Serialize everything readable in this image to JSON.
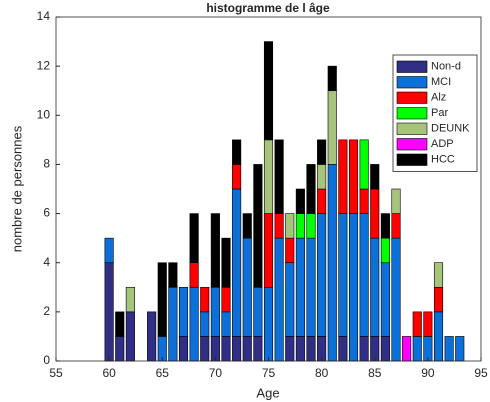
{
  "chart_data": {
    "type": "bar",
    "stacked": true,
    "title": "histogramme de l âge",
    "x_label": "Age",
    "y_label": "nombre de personnes",
    "x": [
      60,
      61,
      62,
      63,
      64,
      65,
      66,
      67,
      68,
      69,
      70,
      71,
      72,
      73,
      74,
      75,
      76,
      77,
      78,
      79,
      80,
      81,
      82,
      83,
      84,
      85,
      86,
      87,
      88,
      89,
      90,
      91,
      92,
      93
    ],
    "series": [
      {
        "name": "Non-d",
        "color": "#312e86",
        "values": [
          4,
          1,
          2,
          0,
          2,
          0,
          0,
          1,
          0,
          1,
          1,
          1,
          1,
          1,
          1,
          0,
          0,
          1,
          1,
          1,
          1,
          0,
          1,
          0,
          1,
          1,
          1,
          0,
          0,
          0,
          0,
          0,
          0,
          0
        ]
      },
      {
        "name": "MCI",
        "color": "#0d6fd8",
        "values": [
          1,
          0,
          0,
          0,
          0,
          1,
          3,
          2,
          3,
          1,
          2,
          1,
          6,
          4,
          2,
          3,
          5,
          3,
          4,
          4,
          5,
          8,
          5,
          6,
          5,
          4,
          3,
          5,
          0,
          1,
          1,
          2,
          1,
          1
        ]
      },
      {
        "name": "Alz",
        "color": "#ff0000",
        "values": [
          0,
          0,
          0,
          0,
          0,
          0,
          0,
          0,
          1,
          1,
          0,
          1,
          1,
          0,
          0,
          3,
          1,
          1,
          0,
          0,
          1,
          0,
          3,
          3,
          1,
          2,
          0,
          1,
          0,
          1,
          1,
          1,
          0,
          0
        ]
      },
      {
        "name": "Par",
        "color": "#00ff00",
        "values": [
          0,
          0,
          0,
          0,
          0,
          0,
          0,
          0,
          0,
          0,
          0,
          0,
          0,
          0,
          0,
          0,
          0,
          0,
          1,
          1,
          0,
          0,
          0,
          0,
          2,
          0,
          1,
          0,
          0,
          0,
          0,
          0,
          0,
          0
        ]
      },
      {
        "name": "DEUNK",
        "color": "#a6c57a",
        "values": [
          0,
          0,
          1,
          0,
          0,
          0,
          0,
          0,
          0,
          0,
          0,
          0,
          0,
          0,
          0,
          3,
          0,
          1,
          0,
          0,
          1,
          3,
          0,
          0,
          0,
          0,
          0,
          1,
          0,
          0,
          0,
          1,
          0,
          0
        ]
      },
      {
        "name": "ADP",
        "color": "#ff00ff",
        "values": [
          0,
          0,
          0,
          0,
          0,
          0,
          0,
          0,
          0,
          0,
          0,
          0,
          0,
          0,
          0,
          0,
          0,
          0,
          0,
          0,
          0,
          0,
          0,
          0,
          0,
          0,
          0,
          0,
          1,
          0,
          0,
          0,
          0,
          0
        ]
      },
      {
        "name": "HCC",
        "color": "#000000",
        "values": [
          0,
          1,
          0,
          0,
          0,
          3,
          1,
          0,
          2,
          0,
          3,
          2,
          1,
          1,
          5,
          4,
          3,
          0,
          1,
          2,
          1,
          1,
          0,
          0,
          0,
          1,
          1,
          0,
          0,
          0,
          0,
          0,
          0,
          0
        ]
      }
    ],
    "xlim": [
      55,
      95
    ],
    "xticks": [
      55,
      60,
      65,
      70,
      75,
      80,
      85,
      90,
      95
    ],
    "ylim": [
      0,
      14
    ],
    "yticks": [
      0,
      2,
      4,
      6,
      8,
      10,
      12,
      14
    ],
    "bar_width": 0.8,
    "legend": "upper right"
  }
}
